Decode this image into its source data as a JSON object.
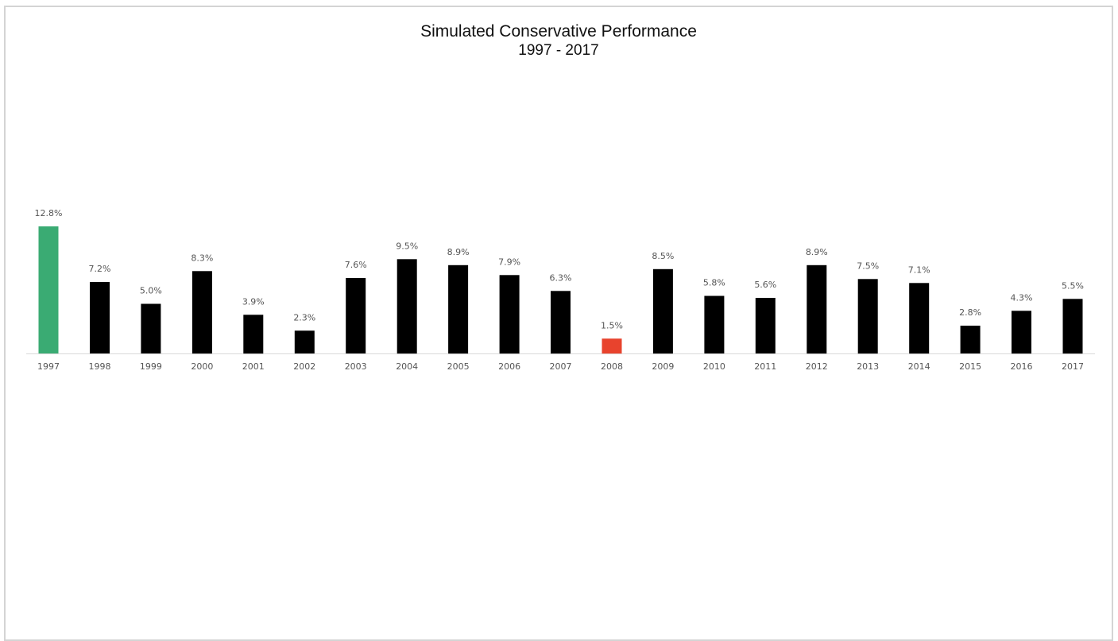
{
  "chart_data": {
    "type": "bar",
    "title": "Simulated Conservative Performance",
    "subtitle": "1997 - 2017",
    "xlabel": "",
    "ylabel": "",
    "categories": [
      "1997",
      "1998",
      "1999",
      "2000",
      "2001",
      "2002",
      "2003",
      "2004",
      "2005",
      "2006",
      "2007",
      "2008",
      "2009",
      "2010",
      "2011",
      "2012",
      "2013",
      "2014",
      "2015",
      "2016",
      "2017"
    ],
    "values": [
      12.8,
      7.2,
      5.0,
      8.3,
      3.9,
      2.3,
      7.6,
      9.5,
      8.9,
      7.9,
      6.3,
      1.5,
      8.5,
      5.8,
      5.6,
      8.9,
      7.5,
      7.1,
      2.8,
      4.3,
      5.5
    ],
    "data_labels": [
      "12.8%",
      "7.2%",
      "5.0%",
      "8.3%",
      "3.9%",
      "2.3%",
      "7.6%",
      "9.5%",
      "8.9%",
      "7.9%",
      "6.3%",
      "1.5%",
      "8.5%",
      "5.8%",
      "5.6%",
      "8.9%",
      "7.5%",
      "7.1%",
      "2.8%",
      "4.3%",
      "5.5%"
    ],
    "ylim": [
      0,
      12.8
    ],
    "grid": false,
    "legend": "none",
    "colors": {
      "default": "#000000",
      "highest": "#3aab73",
      "lowest": "#e8432d",
      "axis": "#d9d9d9",
      "label": "#555555"
    }
  }
}
